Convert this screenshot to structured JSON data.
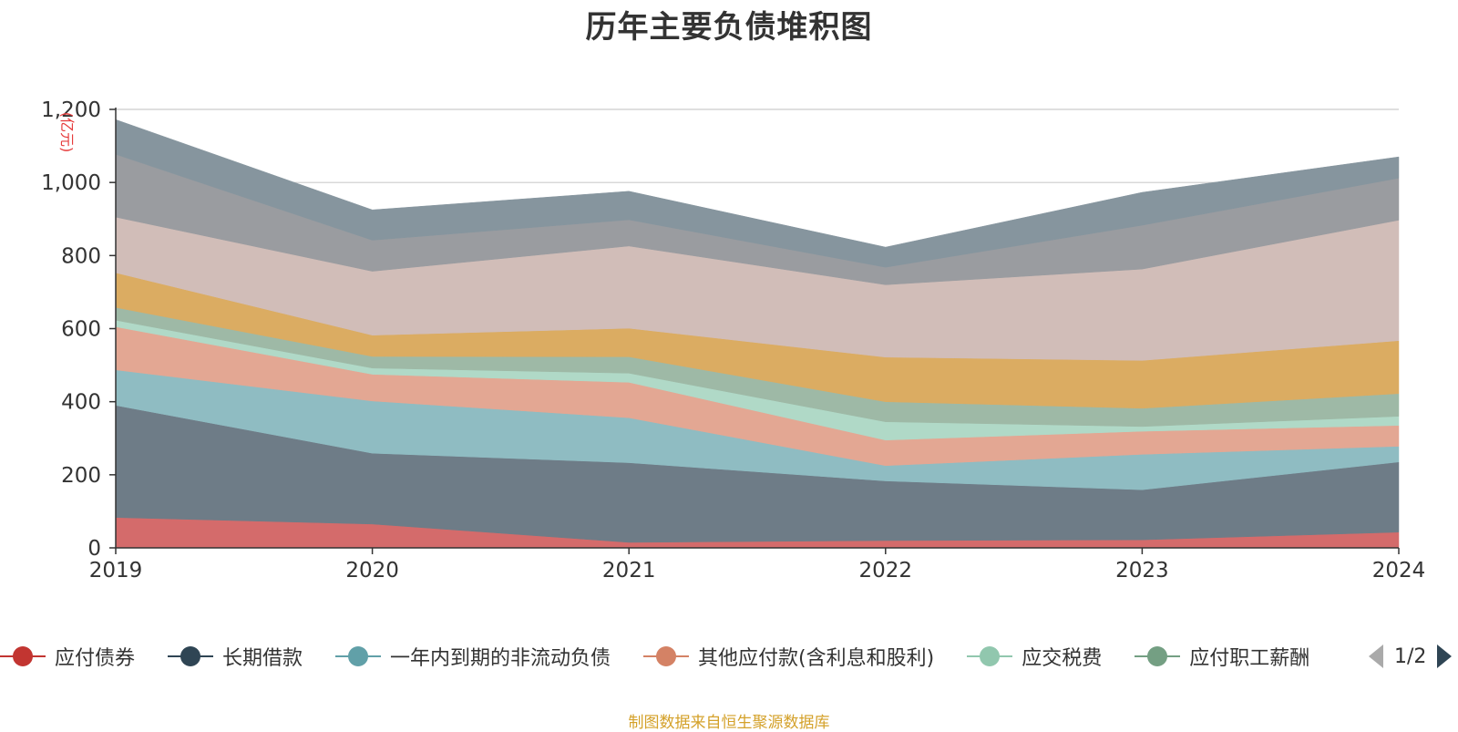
{
  "chart_data": {
    "type": "area",
    "stacked": true,
    "title": "历年主要负债堆积图",
    "unit_label": "(亿元)",
    "x": [
      "2019",
      "2020",
      "2021",
      "2022",
      "2023",
      "2024"
    ],
    "ylim": [
      0,
      1200
    ],
    "yticks": [
      "0",
      "200",
      "400",
      "600",
      "800",
      "1,000",
      "1,200"
    ],
    "grid": true,
    "series": [
      {
        "name": "应付债券",
        "legend_color": "#c23531",
        "fill": "#d46b6b",
        "values": [
          83,
          65,
          15,
          20,
          22,
          43
        ]
      },
      {
        "name": "长期借款",
        "legend_color": "#2f4554",
        "fill": "#6e7c87",
        "values": [
          307,
          194,
          218,
          163,
          137,
          192
        ]
      },
      {
        "name": "一年内到期的非流动负债",
        "legend_color": "#61a0a8",
        "fill": "#8fbcc2",
        "values": [
          97,
          143,
          123,
          42,
          97,
          43
        ]
      },
      {
        "name": "其他应付款(含利息和股利)",
        "legend_color": "#d48265",
        "fill": "#e3a793",
        "values": [
          118,
          73,
          97,
          70,
          63,
          57
        ]
      },
      {
        "name": "应交税费",
        "legend_color": "#91c7ae",
        "fill": "#b0d9c7",
        "values": [
          18,
          17,
          25,
          50,
          13,
          25
        ]
      },
      {
        "name": "应付职工薪酬",
        "legend_color": "#749f83",
        "fill": "#9eb9a6",
        "values": [
          35,
          32,
          45,
          55,
          50,
          62
        ]
      },
      {
        "name": "",
        "legend_color": "#ca8622",
        "fill": "#dbac62",
        "values": [
          95,
          58,
          78,
          122,
          131,
          145
        ]
      },
      {
        "name": "",
        "legend_color": "#bda29a",
        "fill": "#d1bdb8",
        "values": [
          152,
          175,
          225,
          198,
          250,
          330
        ]
      },
      {
        "name": "",
        "legend_color": "#6e7074",
        "fill": "#9a9ca0",
        "values": [
          172,
          85,
          72,
          48,
          120,
          115
        ]
      },
      {
        "name": "",
        "legend_color": "#546570",
        "fill": "#86959e",
        "values": [
          95,
          83,
          78,
          55,
          90,
          58
        ]
      }
    ]
  },
  "legend": {
    "visible_items": [
      "应付债券",
      "长期借款",
      "一年内到期的非流动负债",
      "其他应付款(含利息和股利)",
      "应交税费",
      "应付职工薪酬"
    ],
    "page_indicator": "1/2"
  },
  "source_note": "制图数据来自恒生聚源数据库"
}
